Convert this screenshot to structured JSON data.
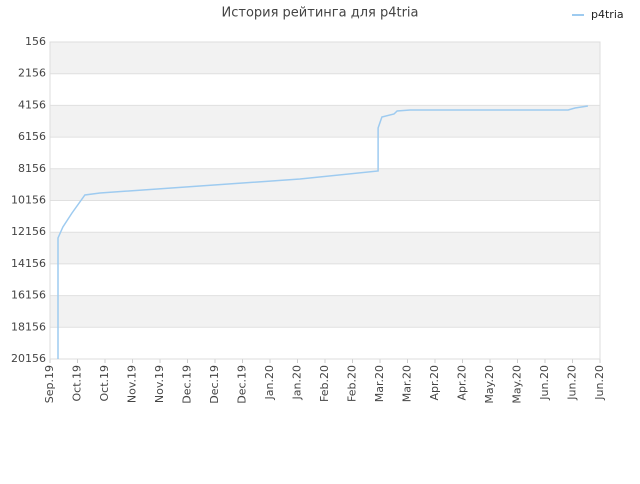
{
  "chart_data": {
    "type": "line",
    "title": "История рейтинга для p4tria",
    "x": [
      0.29,
      0.29,
      0.47,
      0.8,
      1.27,
      1.82,
      5.45,
      9.09,
      11.93,
      11.93,
      12.07,
      12.51,
      12.62,
      13.09,
      18.84,
      19.09,
      19.56
    ],
    "series": [
      {
        "name": "p4tria",
        "color": "#9ecbf0",
        "values": [
          20156,
          12522,
          11828,
          10945,
          9809,
          9683,
          9241,
          8800,
          8295,
          5582,
          4888,
          4699,
          4509,
          4446,
          4446,
          4320,
          4194
        ]
      }
    ],
    "xlim": [
      0,
      20
    ],
    "xticks": [
      {
        "value": 0,
        "label": "Sep.19"
      },
      {
        "value": 1,
        "label": "Oct.19"
      },
      {
        "value": 2,
        "label": "Oct.19"
      },
      {
        "value": 3,
        "label": "Nov.19"
      },
      {
        "value": 4,
        "label": "Nov.19"
      },
      {
        "value": 5,
        "label": "Dec.19"
      },
      {
        "value": 6,
        "label": "Dec.19"
      },
      {
        "value": 7,
        "label": "Dec.19"
      },
      {
        "value": 8,
        "label": "Jan.20"
      },
      {
        "value": 9,
        "label": "Jan.20"
      },
      {
        "value": 10,
        "label": "Feb.20"
      },
      {
        "value": 11,
        "label": "Feb.20"
      },
      {
        "value": 12,
        "label": "Mar.20"
      },
      {
        "value": 13,
        "label": "Mar.20"
      },
      {
        "value": 14,
        "label": "Apr.20"
      },
      {
        "value": 15,
        "label": "Apr.20"
      },
      {
        "value": 16,
        "label": "May.20"
      },
      {
        "value": 17,
        "label": "May.20"
      },
      {
        "value": 18,
        "label": "Jun.20"
      },
      {
        "value": 19,
        "label": "Jun.20"
      },
      {
        "value": 20,
        "label": "Jun.20"
      }
    ],
    "ylim": [
      20156,
      156
    ],
    "yticks": [
      156,
      2156,
      4156,
      6156,
      8156,
      10156,
      12156,
      14156,
      16156,
      18156,
      20156
    ],
    "grid": true,
    "legend": "top-right"
  }
}
